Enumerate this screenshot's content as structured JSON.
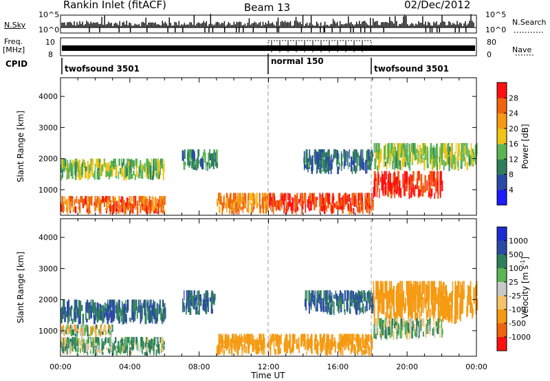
{
  "header": {
    "station": "Rankin Inlet (fitACF)",
    "beam": "Beam 13",
    "date": "02/Dec/2012"
  },
  "noise_panel": {
    "left_label": "N.Sky",
    "right_label": "N.Search",
    "left_ticks": [
      "10^5",
      "10^0"
    ],
    "right_ticks": [
      "10^5",
      "10^0"
    ]
  },
  "freq_panel": {
    "left_label_top": "Freq.",
    "left_label_bottom": "[MHz]",
    "left_ticks": [
      "10",
      "8"
    ],
    "right_label": "Nave",
    "right_ticks": [
      "80",
      "0"
    ]
  },
  "cpid": {
    "label": "CPID",
    "segments": [
      {
        "name": "twofsound 3501",
        "start_hour": 0,
        "end_hour": 12
      },
      {
        "name": "normal 150",
        "start_hour": 12,
        "end_hour": 18
      },
      {
        "name": "twofsound 3501",
        "start_hour": 18,
        "end_hour": 24
      }
    ]
  },
  "chart_data": [
    {
      "type": "heatmap",
      "title": "",
      "quantity": "Power",
      "xlabel": "",
      "ylabel": "Slant Range [km]",
      "x_unit": "hour UT",
      "xlim": [
        0,
        24
      ],
      "ylim": [
        180,
        4600
      ],
      "y_ticks": [
        "1000",
        "2000",
        "3000",
        "4000"
      ],
      "colorbar": {
        "label": "Power [dB]",
        "ticks": [
          "28",
          "24",
          "20",
          "16",
          "12",
          "8",
          "4"
        ],
        "range": [
          0,
          30
        ],
        "colors": [
          "#1c1cff",
          "#2b4aa6",
          "#2f7f5c",
          "#5ab552",
          "#f0c414",
          "#f59a12",
          "#f06410",
          "#ff1010"
        ]
      },
      "echo_regions": [
        {
          "x_start": 0.0,
          "x_end": 6.0,
          "y_start": 1300,
          "y_end": 2000,
          "level": 14
        },
        {
          "x_start": 0.0,
          "x_end": 6.0,
          "y_start": 200,
          "y_end": 800,
          "level": 24
        },
        {
          "x_start": 7.0,
          "x_end": 9.0,
          "y_start": 1600,
          "y_end": 2300,
          "level": 10
        },
        {
          "x_start": 9.0,
          "x_end": 12.0,
          "y_start": 200,
          "y_end": 900,
          "level": 22
        },
        {
          "x_start": 12.0,
          "x_end": 18.0,
          "y_start": 200,
          "y_end": 900,
          "level": 26
        },
        {
          "x_start": 14.0,
          "x_end": 18.0,
          "y_start": 1500,
          "y_end": 2300,
          "level": 8
        },
        {
          "x_start": 18.0,
          "x_end": 22.0,
          "y_start": 700,
          "y_end": 1600,
          "level": 28
        },
        {
          "x_start": 18.0,
          "x_end": 24.0,
          "y_start": 1600,
          "y_end": 2500,
          "level": 14
        }
      ]
    },
    {
      "type": "heatmap",
      "title": "",
      "quantity": "Velocity",
      "xlabel": "Time UT",
      "ylabel": "Slant Range [km]",
      "x_unit": "hour UT",
      "xlim": [
        0,
        24
      ],
      "ylim": [
        180,
        4600
      ],
      "y_ticks": [
        "1000",
        "2000",
        "3000",
        "4000"
      ],
      "x_ticks": [
        "00:00",
        "04:00",
        "08:00",
        "12:00",
        "16:00",
        "20:00",
        "00:00"
      ],
      "colorbar": {
        "label": "Velocity",
        "label_unit": "[m s",
        "label_exp": "-1",
        "label_close": "]",
        "ticks": [
          "1000",
          "500",
          "100",
          "25",
          "-25",
          "-100",
          "-500",
          "-1000"
        ],
        "colors": [
          "#1c2cd0",
          "#2b4aa6",
          "#2f7f5c",
          "#5ab552",
          "#c8c8c8",
          "#f5c46a",
          "#f59a12",
          "#f06410",
          "#ff1010"
        ]
      },
      "echo_regions": [
        {
          "x_start": 0.0,
          "x_end": 6.0,
          "y_start": 1200,
          "y_end": 2000,
          "level": 500
        },
        {
          "x_start": 0.0,
          "x_end": 3.0,
          "y_start": 800,
          "y_end": 1200,
          "level": 0
        },
        {
          "x_start": 0.0,
          "x_end": 6.0,
          "y_start": 200,
          "y_end": 800,
          "level": 100
        },
        {
          "x_start": 7.0,
          "x_end": 9.0,
          "y_start": 1500,
          "y_end": 2300,
          "level": 500
        },
        {
          "x_start": 9.0,
          "x_end": 18.0,
          "y_start": 200,
          "y_end": 900,
          "level": -300
        },
        {
          "x_start": 14.0,
          "x_end": 18.0,
          "y_start": 1500,
          "y_end": 2300,
          "level": 500
        },
        {
          "x_start": 18.0,
          "x_end": 24.0,
          "y_start": 1200,
          "y_end": 2600,
          "level": -300
        },
        {
          "x_start": 18.0,
          "x_end": 22.0,
          "y_start": 700,
          "y_end": 1400,
          "level": 100
        }
      ]
    }
  ]
}
